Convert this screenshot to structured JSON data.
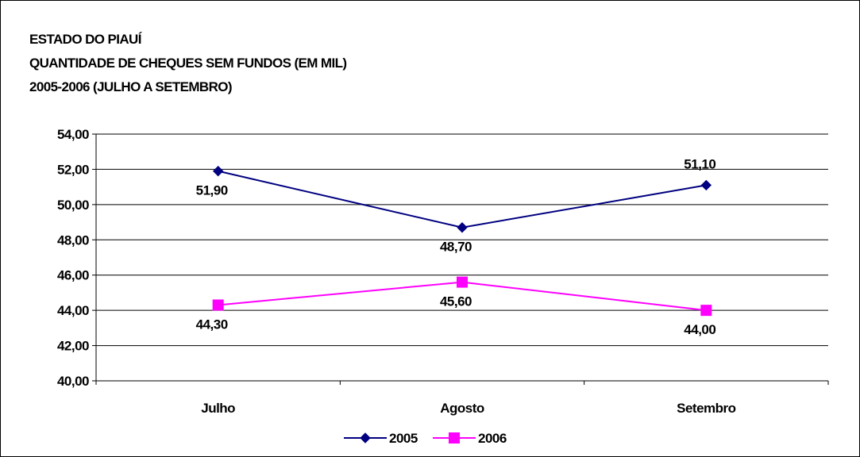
{
  "title_lines": [
    "ESTADO DO PIAUÍ",
    "QUANTIDADE DE CHEQUES SEM FUNDOS (EM MIL)",
    "2005-2006 (JULHO A SETEMBRO)"
  ],
  "chart_data": {
    "type": "line",
    "title": "ESTADO DO PIAUÍ QUANTIDADE DE CHEQUES SEM FUNDOS (EM MIL) 2005-2006 (JULHO A SETEMBRO)",
    "categories": [
      "Julho",
      "Agosto",
      "Setembro"
    ],
    "series": [
      {
        "name": "2005",
        "values": [
          51.9,
          48.7,
          51.1
        ],
        "labels": [
          "51,90",
          "48,70",
          "51,10"
        ],
        "label_position": [
          "below",
          "below",
          "above"
        ],
        "color": "#000080",
        "marker": "diamond"
      },
      {
        "name": "2006",
        "values": [
          44.3,
          45.6,
          44.0
        ],
        "labels": [
          "44,30",
          "45,60",
          "44,00"
        ],
        "label_position": [
          "below",
          "below",
          "below"
        ],
        "color": "#FF00FF",
        "marker": "square"
      }
    ],
    "ylim": [
      40,
      54
    ],
    "yticks": [
      40,
      42,
      44,
      46,
      48,
      50,
      52,
      54
    ],
    "ytick_labels": [
      "40,00",
      "42,00",
      "44,00",
      "46,00",
      "48,00",
      "50,00",
      "52,00",
      "54,00"
    ],
    "grid": true,
    "legend_position": "bottom",
    "xlabel": "",
    "ylabel": ""
  }
}
